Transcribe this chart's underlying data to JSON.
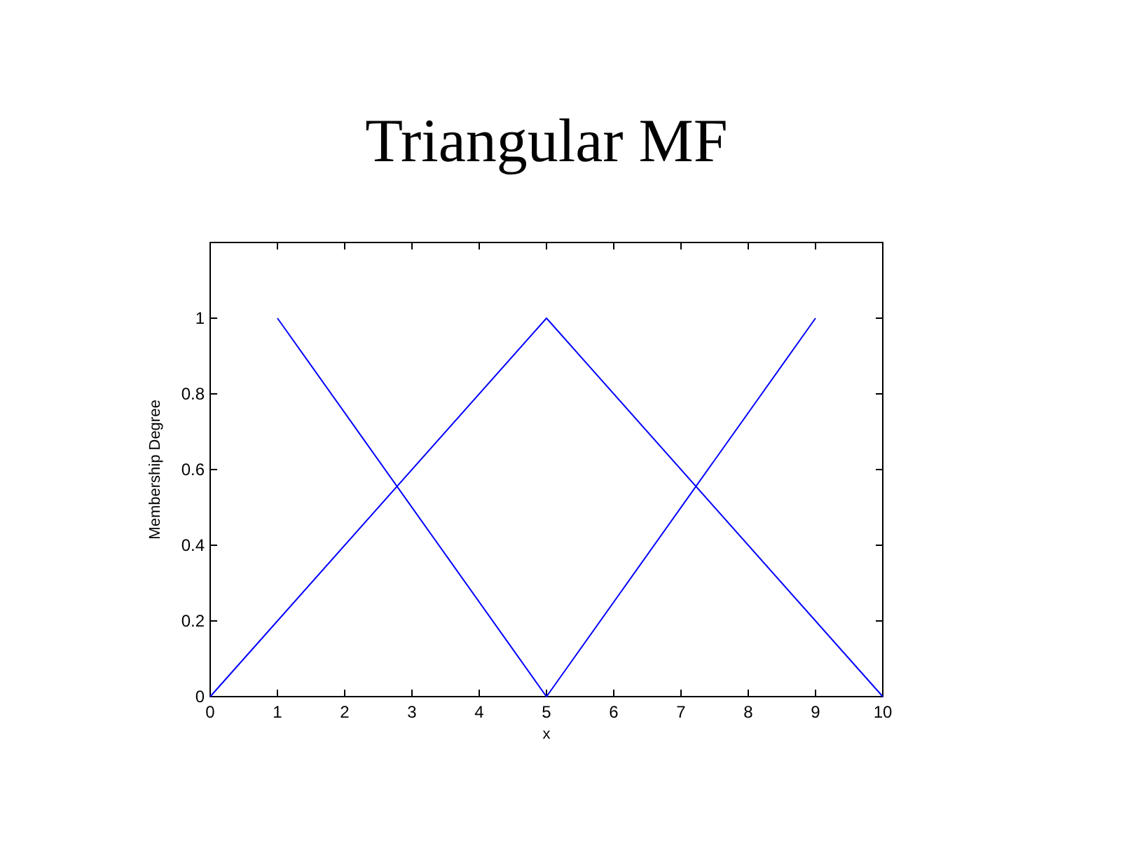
{
  "chart_data": {
    "type": "line",
    "title": "Triangular MF",
    "xlabel": "x",
    "ylabel": "Membership Degree",
    "series": [
      {
        "color": "#0000ff",
        "x": [
          0,
          5,
          10
        ],
        "values": [
          0,
          1,
          0
        ]
      },
      {
        "color": "#0000ff",
        "x": [
          1,
          5,
          9
        ],
        "values": [
          1,
          0,
          1
        ]
      }
    ],
    "xlim": [
      0,
      10
    ],
    "xticks": [
      0,
      1,
      2,
      3,
      4,
      5,
      6,
      7,
      8,
      9,
      10
    ],
    "ylim": [
      0,
      1.2
    ],
    "yticks": [
      0,
      0.2,
      0.4,
      0.6,
      0.8,
      1
    ],
    "grid": false,
    "marker": "none",
    "line_style": "solid"
  }
}
